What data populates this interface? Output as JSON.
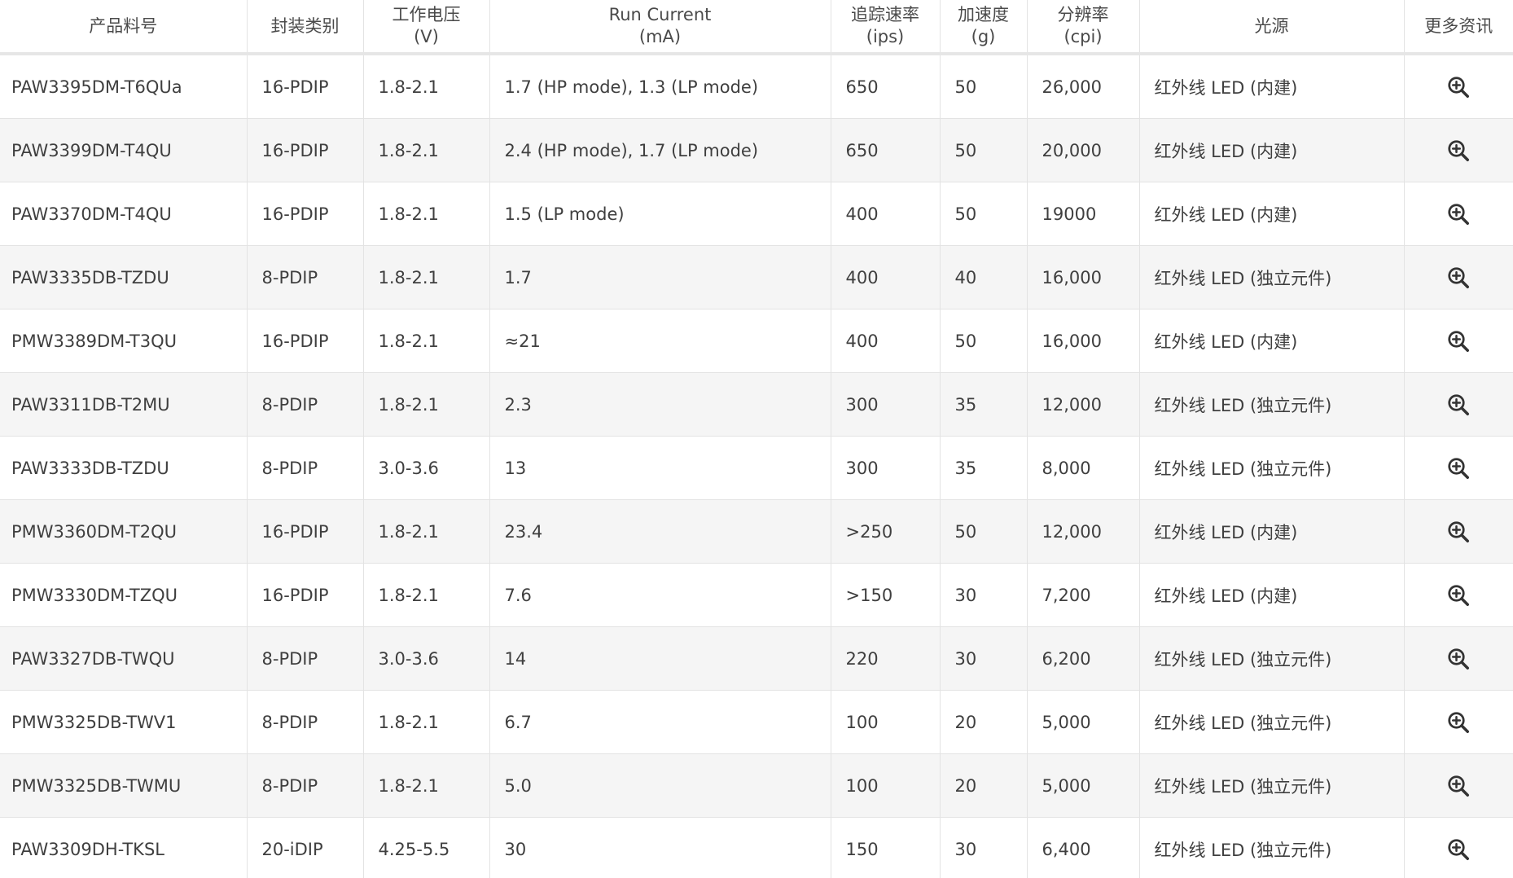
{
  "table": {
    "headers": [
      {
        "line1": "产品料号",
        "line2": ""
      },
      {
        "line1": "封装类别",
        "line2": ""
      },
      {
        "line1": "工作电压",
        "line2": "(V)"
      },
      {
        "line1": "Run Current",
        "line2": "(mA)"
      },
      {
        "line1": "追踪速率",
        "line2": "(ips)"
      },
      {
        "line1": "加速度",
        "line2": "(g)"
      },
      {
        "line1": "分辨率",
        "line2": "(cpi)"
      },
      {
        "line1": "光源",
        "line2": ""
      },
      {
        "line1": "更多资讯",
        "line2": ""
      }
    ],
    "rows": [
      {
        "part": "PAW3395DM-T6QUa",
        "package": "16-PDIP",
        "voltage": "1.8-2.1",
        "current": "1.7 (HP mode), 1.3 (LP mode)",
        "speed": "650",
        "accel": "50",
        "resolution": "26,000",
        "light": "红外线 LED (内建)",
        "more_icon": "zoom-in-icon"
      },
      {
        "part": "PAW3399DM-T4QU",
        "package": "16-PDIP",
        "voltage": "1.8-2.1",
        "current": "2.4 (HP mode), 1.7 (LP mode)",
        "speed": "650",
        "accel": "50",
        "resolution": "20,000",
        "light": "红外线 LED (内建)",
        "more_icon": "zoom-in-icon"
      },
      {
        "part": "PAW3370DM-T4QU",
        "package": "16-PDIP",
        "voltage": "1.8-2.1",
        "current": "1.5 (LP mode)",
        "speed": "400",
        "accel": "50",
        "resolution": "19000",
        "light": "红外线 LED (内建)",
        "more_icon": "zoom-in-icon"
      },
      {
        "part": "PAW3335DB-TZDU",
        "package": "8-PDIP",
        "voltage": "1.8-2.1",
        "current": "1.7",
        "speed": "400",
        "accel": "40",
        "resolution": "16,000",
        "light": "红外线 LED (独立元件)",
        "more_icon": "zoom-in-icon"
      },
      {
        "part": "PMW3389DM-T3QU",
        "package": "16-PDIP",
        "voltage": "1.8-2.1",
        "current": "≈21",
        "speed": "400",
        "accel": "50",
        "resolution": "16,000",
        "light": "红外线 LED (内建)",
        "more_icon": "zoom-in-icon"
      },
      {
        "part": "PAW3311DB-T2MU",
        "package": "8-PDIP",
        "voltage": "1.8-2.1",
        "current": "2.3",
        "speed": "300",
        "accel": "35",
        "resolution": "12,000",
        "light": "红外线 LED (独立元件)",
        "more_icon": "zoom-in-icon"
      },
      {
        "part": "PAW3333DB-TZDU",
        "package": "8-PDIP",
        "voltage": "3.0-3.6",
        "current": "13",
        "speed": "300",
        "accel": "35",
        "resolution": "8,000",
        "light": "红外线 LED (独立元件)",
        "more_icon": "zoom-in-icon"
      },
      {
        "part": "PMW3360DM-T2QU",
        "package": "16-PDIP",
        "voltage": "1.8-2.1",
        "current": "23.4",
        "speed": ">250",
        "accel": "50",
        "resolution": "12,000",
        "light": "红外线 LED (内建)",
        "more_icon": "zoom-in-icon"
      },
      {
        "part": "PMW3330DM-TZQU",
        "package": "16-PDIP",
        "voltage": "1.8-2.1",
        "current": "7.6",
        "speed": ">150",
        "accel": "30",
        "resolution": "7,200",
        "light": "红外线 LED (内建)",
        "more_icon": "zoom-in-icon"
      },
      {
        "part": "PAW3327DB-TWQU",
        "package": "8-PDIP",
        "voltage": "3.0-3.6",
        "current": "14",
        "speed": "220",
        "accel": "30",
        "resolution": "6,200",
        "light": "红外线 LED (独立元件)",
        "more_icon": "zoom-in-icon"
      },
      {
        "part": "PMW3325DB-TWV1",
        "package": "8-PDIP",
        "voltage": "1.8-2.1",
        "current": "6.7",
        "speed": "100",
        "accel": "20",
        "resolution": "5,000",
        "light": "红外线 LED (独立元件)",
        "more_icon": "zoom-in-icon"
      },
      {
        "part": "PMW3325DB-TWMU",
        "package": "8-PDIP",
        "voltage": "1.8-2.1",
        "current": "5.0",
        "speed": "100",
        "accel": "20",
        "resolution": "5,000",
        "light": "红外线 LED (独立元件)",
        "more_icon": "zoom-in-icon"
      },
      {
        "part": "PAW3309DH-TKSL",
        "package": "20-iDIP",
        "voltage": "4.25-5.5",
        "current": "30",
        "speed": "150",
        "accel": "30",
        "resolution": "6,400",
        "light": "红外线 LED (独立元件)",
        "more_icon": "zoom-in-icon"
      }
    ]
  },
  "colors": {
    "row_even_bg": "#f5f5f5",
    "row_odd_bg": "#ffffff",
    "border": "#e3e3e3",
    "text": "#3f3f3f",
    "icon": "#333333"
  }
}
